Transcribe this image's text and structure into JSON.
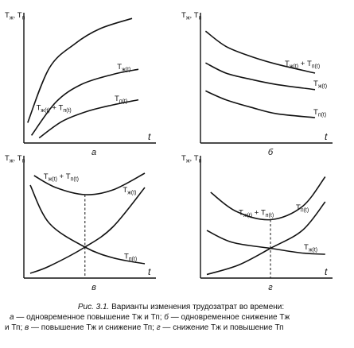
{
  "chart_data": [
    {
      "type": "line",
      "panel_label": "а",
      "ylabel": "Тж, Тп",
      "xlabel": "t",
      "xlim": [
        0,
        10
      ],
      "ylim": [
        0,
        10
      ],
      "grid": false,
      "series": [
        {
          "name": "Тж(t) + Тп(t)",
          "x": [
            0.3,
            2,
            4,
            6,
            8.5
          ],
          "y": [
            1.6,
            5.9,
            7.8,
            9.0,
            9.8
          ]
        },
        {
          "name": "Тж(t)",
          "x": [
            0.6,
            2.5,
            4.5,
            7,
            9
          ],
          "y": [
            0.6,
            3.2,
            4.6,
            5.4,
            5.8
          ]
        },
        {
          "name": "Тп(t)",
          "x": [
            1.2,
            3,
            5,
            7,
            9
          ],
          "y": [
            0.4,
            1.7,
            2.5,
            3.0,
            3.4
          ]
        }
      ]
    },
    {
      "type": "line",
      "panel_label": "б",
      "ylabel": "Тж, Тп",
      "xlabel": "t",
      "xlim": [
        0,
        10
      ],
      "ylim": [
        0,
        10
      ],
      "grid": false,
      "series": [
        {
          "name": "Тж(t) + Тп(t)",
          "x": [
            0.4,
            2,
            4,
            6,
            9
          ],
          "y": [
            8.8,
            7.6,
            6.8,
            6.2,
            5.5
          ]
        },
        {
          "name": "Тж(t)",
          "x": [
            0.4,
            2,
            4,
            6,
            9
          ],
          "y": [
            6.3,
            5.5,
            5.0,
            4.6,
            4.2
          ]
        },
        {
          "name": "Тп(t)",
          "x": [
            0.4,
            2,
            4,
            6,
            9
          ],
          "y": [
            4.1,
            3.4,
            2.8,
            2.3,
            2.0
          ]
        }
      ]
    },
    {
      "type": "line",
      "panel_label": "в",
      "ylabel": "Тж, Тп",
      "xlabel": "t",
      "xlim": [
        0,
        10
      ],
      "ylim": [
        0,
        10
      ],
      "grid": false,
      "annotations": [
        {
          "type": "vertical-dashed",
          "x": 4.8
        }
      ],
      "series": [
        {
          "name": "Тж(t) + Тп(t)",
          "x": [
            0.8,
            2.5,
            4.8,
            7,
            9.5
          ],
          "y": [
            8.6,
            7.6,
            7.0,
            7.4,
            8.8
          ]
        },
        {
          "name": "Тж(t)",
          "x": [
            0.5,
            2,
            4.8,
            7,
            9.5
          ],
          "y": [
            0.4,
            1.0,
            2.6,
            4.3,
            7.6
          ]
        },
        {
          "name": "Тп(t)",
          "x": [
            0.5,
            2,
            4.8,
            7,
            9.5
          ],
          "y": [
            7.8,
            4.6,
            2.6,
            1.7,
            1.2
          ]
        }
      ]
    },
    {
      "type": "line",
      "panel_label": "г",
      "ylabel": "Тж, Тп",
      "xlabel": "t",
      "xlim": [
        0,
        10
      ],
      "ylim": [
        0,
        10
      ],
      "grid": false,
      "annotations": [
        {
          "type": "vertical-dashed",
          "x": 5.5
        }
      ],
      "series": [
        {
          "name": "Тж(t) + Тп(t)",
          "x": [
            0.8,
            2.8,
            5.5,
            8,
            9.8
          ],
          "y": [
            7.2,
            5.6,
            4.9,
            6.0,
            8.5
          ]
        },
        {
          "name": "Тж(t)",
          "x": [
            0.5,
            2.5,
            5.5,
            8,
            9.8
          ],
          "y": [
            4.0,
            3.0,
            2.5,
            2.1,
            2.0
          ]
        },
        {
          "name": "Тп(t)",
          "x": [
            0.5,
            3,
            5.5,
            8,
            9.8
          ],
          "y": [
            0.3,
            1.1,
            2.5,
            4.0,
            6.4
          ]
        }
      ]
    }
  ],
  "caption": {
    "prefix": "Рис. 3.1.",
    "title": "Варианты изменения трудозатрат во времени:",
    "a_letter": "а",
    "a_text": " — одновременное повышение Тж и Тп; ",
    "b_letter": "б",
    "b_text": " — одновременное снижение  Тж",
    "b_text2": "и Тп; ",
    "v_letter": "в",
    "v_text": " — повышение Тж и снижение Тп; ",
    "g_letter": "г",
    "g_text": " — снижение Тж и повышение Тп"
  }
}
